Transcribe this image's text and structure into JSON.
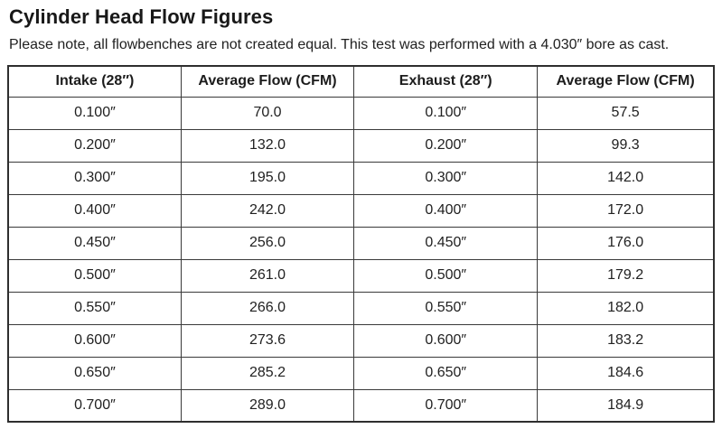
{
  "page": {
    "title": "Cylinder Head Flow Figures",
    "subtitle": "Please note, all flowbenches are not created equal. This test was performed with a 4.030″ bore as cast."
  },
  "table": {
    "columns": [
      "Intake (28″)",
      "Average Flow (CFM)",
      "Exhaust (28″)",
      "Average Flow (CFM)"
    ],
    "rows": [
      [
        "0.100″",
        "70.0",
        "0.100″",
        "57.5"
      ],
      [
        "0.200″",
        "132.0",
        "0.200″",
        "99.3"
      ],
      [
        "0.300″",
        "195.0",
        "0.300″",
        "142.0"
      ],
      [
        "0.400″",
        "242.0",
        "0.400″",
        "172.0"
      ],
      [
        "0.450″",
        "256.0",
        "0.450″",
        "176.0"
      ],
      [
        "0.500″",
        "261.0",
        "0.500″",
        "179.2"
      ],
      [
        "0.550″",
        "266.0",
        "0.550″",
        "182.0"
      ],
      [
        "0.600″",
        "273.6",
        "0.600″",
        "183.2"
      ],
      [
        "0.650″",
        "285.2",
        "0.650″",
        "184.6"
      ],
      [
        "0.700″",
        "289.0",
        "0.700″",
        "184.9"
      ]
    ]
  },
  "chart_data": {
    "type": "table",
    "title": "Cylinder Head Flow Figures",
    "note": "Please note, all flowbenches are not created equal. This test was performed with a 4.030″ bore as cast.",
    "columns": [
      "Intake (28″)",
      "Average Flow (CFM)",
      "Exhaust (28″)",
      "Average Flow (CFM)"
    ],
    "lift_inches": [
      0.1,
      0.2,
      0.3,
      0.4,
      0.45,
      0.5,
      0.55,
      0.6,
      0.65,
      0.7
    ],
    "series": [
      {
        "name": "Intake Average Flow (CFM)",
        "values": [
          70.0,
          132.0,
          195.0,
          242.0,
          256.0,
          261.0,
          266.0,
          273.6,
          285.2,
          289.0
        ]
      },
      {
        "name": "Exhaust Average Flow (CFM)",
        "values": [
          57.5,
          99.3,
          142.0,
          172.0,
          176.0,
          179.2,
          182.0,
          183.2,
          184.6,
          184.9
        ]
      }
    ],
    "test_pressure_inches_h2o": 28,
    "bore": "4.030″ as cast"
  },
  "colors": {
    "background": "#ffffff",
    "text": "#212121",
    "table_border": "#3a3a3a",
    "table_outer_border": "#2e2e2e"
  }
}
